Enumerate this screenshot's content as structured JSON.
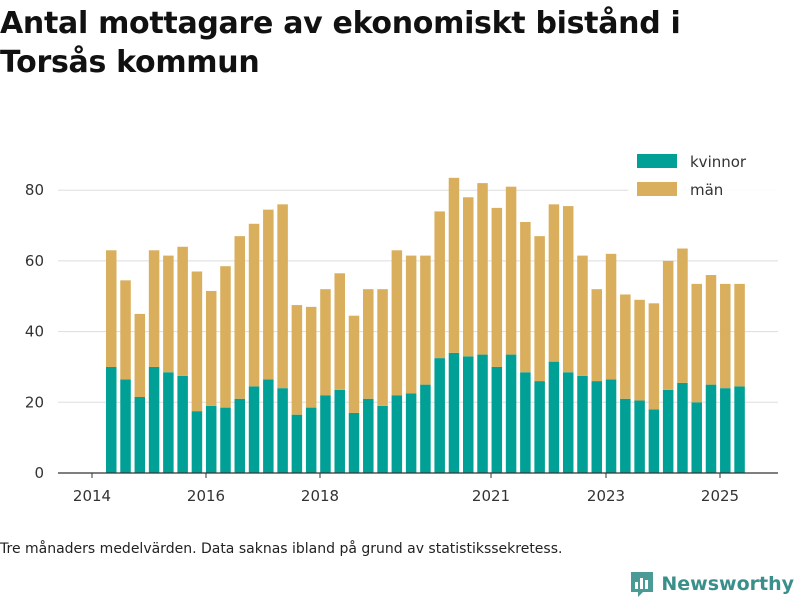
{
  "title": "Antal mottagare av ekonomiskt bistånd i Torsås kommun",
  "footnote": "Tre månaders medelvärden. Data saknas ibland på grund av statistikssekretess.",
  "brand": {
    "name": "Newsworthy",
    "icon": "bar-chart-logo-icon"
  },
  "colors": {
    "kvinnor": "#00a096",
    "man": "#d9ae5c",
    "grid": "#dddddd",
    "axis": "#333333"
  },
  "chart_data": {
    "type": "bar",
    "stacked": true,
    "x_axis": {
      "type": "date",
      "ticks": [
        "2014",
        "2016",
        "2018",
        "2021",
        "2023",
        "2025"
      ]
    },
    "y_axis": {
      "ticks": [
        0,
        20,
        40,
        60,
        80
      ],
      "ylim": [
        0,
        90
      ]
    },
    "grid": "horizontal",
    "legend": {
      "placement": "top-right",
      "entries": [
        "kvinnor",
        "män"
      ]
    },
    "x": [
      "2014-06",
      "2014-09",
      "2014-12",
      "2015-03",
      "2015-06",
      "2015-09",
      "2015-12",
      "2016-03",
      "2016-06",
      "2016-09",
      "2016-12",
      "2017-03",
      "2017-06",
      "2017-09",
      "2017-12",
      "2018-03",
      "2018-06",
      "2018-09",
      "2018-12",
      "2019-03",
      "2019-06",
      "2019-09",
      "2019-12",
      "2020-03",
      "2020-06",
      "2020-09",
      "2020-12",
      "2021-03",
      "2021-06",
      "2021-09",
      "2021-12",
      "2022-03",
      "2022-06",
      "2022-09",
      "2022-12",
      "2023-03",
      "2023-06",
      "2023-09",
      "2023-12",
      "2024-03",
      "2024-06",
      "2024-09",
      "2024-12",
      "2025-03",
      "2025-06"
    ],
    "series": [
      {
        "name": "kvinnor",
        "values": [
          30,
          26.5,
          21.5,
          30,
          28.5,
          27.5,
          17.5,
          19,
          18.5,
          21,
          24.5,
          26.5,
          24,
          16.5,
          18.5,
          22,
          23.5,
          17,
          21,
          19,
          22,
          22.5,
          25,
          32.5,
          34,
          33,
          33.5,
          30,
          33.5,
          28.5,
          26,
          31.5,
          28.5,
          27.5,
          26,
          26.5,
          21,
          20.5,
          18,
          23.5,
          25.5,
          20,
          25,
          24,
          24.5
        ]
      },
      {
        "name": "män",
        "values": [
          33,
          28,
          23.5,
          33,
          33,
          36.5,
          39.5,
          32.5,
          40,
          46,
          46,
          48,
          52,
          31,
          28.5,
          30,
          33,
          27.5,
          31,
          33,
          41,
          39,
          36.5,
          41.5,
          49.5,
          45,
          48.5,
          45,
          47.5,
          42.5,
          41,
          44.5,
          47,
          34,
          26,
          35.5,
          29.5,
          28.5,
          30,
          36.5,
          38,
          33.5,
          31,
          29.5,
          29
        ]
      }
    ]
  }
}
